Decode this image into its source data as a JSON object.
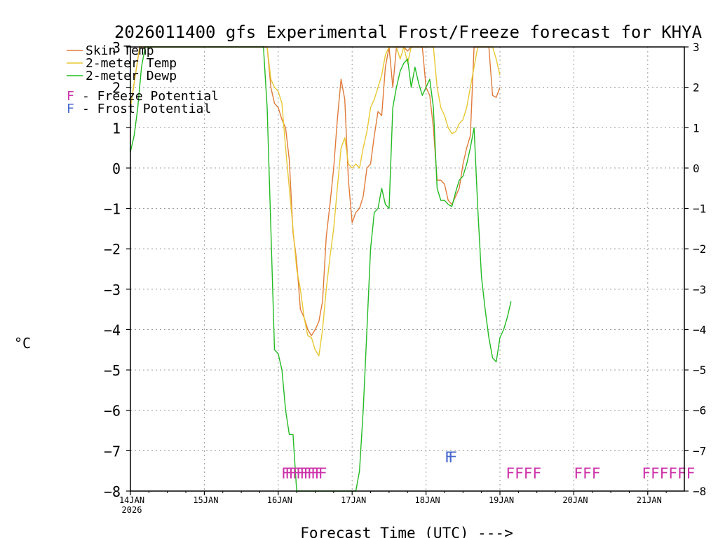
{
  "chart_data": {
    "type": "line",
    "title": "2026011400 gfs Experimental Frost/Freeze forecast for KHYA",
    "xlabel": "Forecast Time (UTC) --->",
    "ylabel": "°C",
    "xlim": [
      0,
      7.5
    ],
    "ylim": [
      -8,
      3
    ],
    "grid": true,
    "x_ticks": [
      {
        "label": "14JAN",
        "sub": "2026",
        "day": 0
      },
      {
        "label": "15JAN",
        "day": 1
      },
      {
        "label": "16JAN",
        "day": 2
      },
      {
        "label": "17JAN",
        "day": 3
      },
      {
        "label": "18JAN",
        "day": 4
      },
      {
        "label": "19JAN",
        "day": 5
      },
      {
        "label": "20JAN",
        "day": 6
      },
      {
        "label": "21JAN",
        "day": 7
      }
    ],
    "y_ticks": [
      3,
      2,
      1,
      0,
      -1,
      -2,
      -3,
      -4,
      -5,
      -6,
      -7,
      -8
    ],
    "series": [
      {
        "name": "Skin Temp",
        "color": "#e07b39",
        "points": [
          [
            0.0,
            1.5
          ],
          [
            0.125,
            3.0
          ],
          [
            1.85,
            3.0
          ],
          [
            1.9,
            2.0
          ],
          [
            1.95,
            1.6
          ],
          [
            2.0,
            1.5
          ],
          [
            2.05,
            1.2
          ],
          [
            2.1,
            1.0
          ],
          [
            2.15,
            0.2
          ],
          [
            2.2,
            -1.6
          ],
          [
            2.25,
            -2.3
          ],
          [
            2.3,
            -3.5
          ],
          [
            2.35,
            -3.7
          ],
          [
            2.4,
            -4.0
          ],
          [
            2.45,
            -4.15
          ],
          [
            2.5,
            -4.0
          ],
          [
            2.55,
            -3.8
          ],
          [
            2.6,
            -3.3
          ],
          [
            2.65,
            -1.7
          ],
          [
            2.7,
            -0.9
          ],
          [
            2.75,
            0.0
          ],
          [
            2.8,
            1.2
          ],
          [
            2.85,
            2.2
          ],
          [
            2.9,
            1.7
          ],
          [
            2.95,
            -0.3
          ],
          [
            3.0,
            -1.35
          ],
          [
            3.05,
            -1.1
          ],
          [
            3.1,
            -1.0
          ],
          [
            3.15,
            -0.7
          ],
          [
            3.2,
            0.0
          ],
          [
            3.25,
            0.1
          ],
          [
            3.3,
            0.8
          ],
          [
            3.35,
            1.4
          ],
          [
            3.4,
            1.3
          ],
          [
            3.45,
            2.5
          ],
          [
            3.5,
            3.0
          ],
          [
            3.55,
            2.0
          ],
          [
            3.6,
            3.0
          ],
          [
            3.7,
            3.0
          ],
          [
            3.75,
            2.9
          ],
          [
            3.8,
            3.0
          ],
          [
            3.95,
            3.0
          ],
          [
            4.0,
            2.0
          ],
          [
            4.05,
            1.8
          ],
          [
            4.1,
            1.0
          ],
          [
            4.15,
            -0.3
          ],
          [
            4.2,
            -0.3
          ],
          [
            4.25,
            -0.4
          ],
          [
            4.3,
            -0.8
          ],
          [
            4.35,
            -0.9
          ],
          [
            4.4,
            -0.7
          ],
          [
            4.45,
            -0.5
          ],
          [
            4.5,
            0.1
          ],
          [
            4.55,
            0.5
          ],
          [
            4.6,
            0.8
          ],
          [
            4.65,
            3.0
          ],
          [
            4.85,
            3.0
          ],
          [
            4.9,
            1.8
          ],
          [
            4.95,
            1.75
          ],
          [
            5.0,
            2.0
          ]
        ]
      },
      {
        "name": "2-meter Temp",
        "color": "#e8c832",
        "points": [
          [
            0.0,
            1.5
          ],
          [
            0.125,
            3.0
          ],
          [
            1.85,
            3.0
          ],
          [
            1.9,
            2.2
          ],
          [
            1.95,
            2.0
          ],
          [
            2.0,
            1.9
          ],
          [
            2.05,
            1.6
          ],
          [
            2.1,
            0.5
          ],
          [
            2.15,
            -0.5
          ],
          [
            2.2,
            -1.5
          ],
          [
            2.25,
            -2.5
          ],
          [
            2.3,
            -3.0
          ],
          [
            2.35,
            -3.7
          ],
          [
            2.4,
            -4.15
          ],
          [
            2.45,
            -4.2
          ],
          [
            2.5,
            -4.5
          ],
          [
            2.55,
            -4.65
          ],
          [
            2.6,
            -4.0
          ],
          [
            2.65,
            -3.0
          ],
          [
            2.7,
            -2.2
          ],
          [
            2.75,
            -1.5
          ],
          [
            2.8,
            -0.5
          ],
          [
            2.85,
            0.5
          ],
          [
            2.9,
            0.75
          ],
          [
            2.95,
            0.1
          ],
          [
            3.0,
            0.0
          ],
          [
            3.05,
            0.1
          ],
          [
            3.1,
            0.0
          ],
          [
            3.15,
            0.5
          ],
          [
            3.2,
            0.9
          ],
          [
            3.25,
            1.5
          ],
          [
            3.3,
            1.7
          ],
          [
            3.35,
            2.0
          ],
          [
            3.4,
            2.3
          ],
          [
            3.45,
            2.8
          ],
          [
            3.5,
            3.0
          ],
          [
            3.6,
            3.0
          ],
          [
            3.65,
            2.7
          ],
          [
            3.7,
            3.0
          ],
          [
            3.75,
            2.6
          ],
          [
            3.8,
            3.0
          ],
          [
            4.1,
            3.0
          ],
          [
            4.15,
            2.0
          ],
          [
            4.2,
            1.5
          ],
          [
            4.25,
            1.3
          ],
          [
            4.3,
            1.0
          ],
          [
            4.35,
            0.85
          ],
          [
            4.4,
            0.9
          ],
          [
            4.45,
            1.1
          ],
          [
            4.5,
            1.2
          ],
          [
            4.55,
            1.5
          ],
          [
            4.6,
            2.0
          ],
          [
            4.65,
            2.5
          ],
          [
            4.7,
            3.0
          ],
          [
            4.9,
            3.0
          ],
          [
            4.95,
            2.7
          ],
          [
            5.0,
            2.3
          ]
        ]
      },
      {
        "name": "2-meter Dewp",
        "color": "#22bb22",
        "points": [
          [
            0.0,
            0.4
          ],
          [
            0.05,
            0.8
          ],
          [
            0.1,
            1.5
          ],
          [
            0.15,
            2.5
          ],
          [
            0.2,
            3.0
          ],
          [
            1.8,
            3.0
          ],
          [
            1.85,
            1.5
          ],
          [
            1.9,
            -1.5
          ],
          [
            1.95,
            -4.5
          ],
          [
            2.0,
            -4.6
          ],
          [
            2.05,
            -5.0
          ],
          [
            2.1,
            -6.0
          ],
          [
            2.15,
            -6.6
          ],
          [
            2.2,
            -6.6
          ],
          [
            2.25,
            -8.0
          ],
          [
            3.05,
            -8.0
          ],
          [
            3.1,
            -7.5
          ],
          [
            3.15,
            -6.0
          ],
          [
            3.2,
            -4.0
          ],
          [
            3.25,
            -2.0
          ],
          [
            3.3,
            -1.1
          ],
          [
            3.35,
            -1.0
          ],
          [
            3.4,
            -0.5
          ],
          [
            3.45,
            -0.9
          ],
          [
            3.5,
            -1.0
          ],
          [
            3.55,
            1.5
          ],
          [
            3.6,
            2.0
          ],
          [
            3.65,
            2.4
          ],
          [
            3.7,
            2.6
          ],
          [
            3.75,
            2.7
          ],
          [
            3.8,
            2.0
          ],
          [
            3.85,
            2.5
          ],
          [
            3.9,
            2.1
          ],
          [
            3.95,
            1.8
          ],
          [
            4.0,
            2.0
          ],
          [
            4.05,
            2.2
          ],
          [
            4.1,
            1.5
          ],
          [
            4.15,
            -0.5
          ],
          [
            4.2,
            -0.8
          ],
          [
            4.25,
            -0.8
          ],
          [
            4.3,
            -0.9
          ],
          [
            4.35,
            -0.95
          ],
          [
            4.4,
            -0.6
          ],
          [
            4.45,
            -0.3
          ],
          [
            4.5,
            -0.2
          ],
          [
            4.55,
            0.1
          ],
          [
            4.6,
            0.5
          ],
          [
            4.65,
            1.0
          ],
          [
            4.7,
            -1.0
          ],
          [
            4.75,
            -2.7
          ],
          [
            4.8,
            -3.5
          ],
          [
            4.85,
            -4.2
          ],
          [
            4.9,
            -4.7
          ],
          [
            4.95,
            -4.8
          ],
          [
            5.0,
            -4.2
          ],
          [
            5.05,
            -4.0
          ],
          [
            5.1,
            -3.7
          ],
          [
            5.15,
            -3.3
          ]
        ]
      }
    ],
    "legend": [
      {
        "label": "Skin Temp",
        "color": "#e07b39",
        "kind": "line"
      },
      {
        "label": "2-meter Temp",
        "color": "#e8c832",
        "kind": "line"
      },
      {
        "label": "2-meter Dewp",
        "color": "#22bb22",
        "kind": "line"
      },
      {
        "label": "F - Freeze Potential",
        "color": "#cc33aa",
        "kind": "marker"
      },
      {
        "label": "F - Frost Potential",
        "color": "#4466cc",
        "kind": "marker"
      }
    ],
    "markers": [
      {
        "text": "FFFFFFFFFFF",
        "type": "freeze",
        "color": "#cc33aa",
        "start_day": 2.04,
        "y": -7.55,
        "spacing_days": 0.05
      },
      {
        "text": "FF",
        "type": "frost",
        "color": "#4466cc",
        "start_day": 4.25,
        "y": -7.15,
        "spacing_days": 0.05
      },
      {
        "text": "FFFF",
        "type": "freeze",
        "color": "#cc33aa",
        "start_day": 5.08,
        "y": -7.55,
        "spacing_days": 0.12
      },
      {
        "text": "FFF",
        "type": "freeze",
        "color": "#cc33aa",
        "start_day": 6.0,
        "y": -7.55,
        "spacing_days": 0.12
      },
      {
        "text": "FFFFFF",
        "type": "freeze",
        "color": "#cc33aa",
        "start_day": 6.92,
        "y": -7.55,
        "spacing_days": 0.12
      }
    ]
  }
}
